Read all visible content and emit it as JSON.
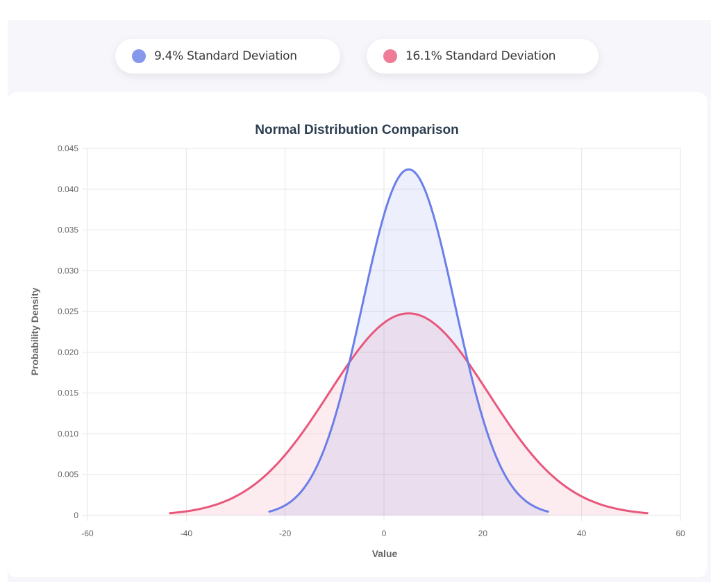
{
  "legend": [
    {
      "label": "9.4% Standard Deviation",
      "color": "#8598eb"
    },
    {
      "label": "16.1% Standard Deviation",
      "color": "#ef7b97"
    }
  ],
  "chart_data": {
    "type": "area",
    "title": "Normal Distribution Comparison",
    "xlabel": "Value",
    "ylabel": "Probability Density",
    "xlim": [
      -60,
      60
    ],
    "ylim": [
      0,
      0.045
    ],
    "xticks": [
      "-60",
      "-40",
      "-20",
      "0",
      "20",
      "40",
      "60"
    ],
    "yticks": [
      "0",
      "0.005",
      "0.010",
      "0.015",
      "0.020",
      "0.025",
      "0.030",
      "0.035",
      "0.040",
      "0.045"
    ],
    "grid": true,
    "legend_position": "top-center",
    "series": [
      {
        "name": "9.4% Standard Deviation",
        "distribution": "normal",
        "mean": 5,
        "std": 9.4,
        "x_range": [
          -23.2,
          33.2
        ],
        "peak_density": 0.0424,
        "line_color": "#6b7fe8",
        "fill_color": "rgba(107,127,232,0.12)"
      },
      {
        "name": "16.1% Standard Deviation",
        "distribution": "normal",
        "mean": 5,
        "std": 16.1,
        "x_range": [
          -43.3,
          53.3
        ],
        "peak_density": 0.0248,
        "line_color": "#e8577c",
        "fill_color": "rgba(232,87,124,0.12)"
      }
    ]
  }
}
